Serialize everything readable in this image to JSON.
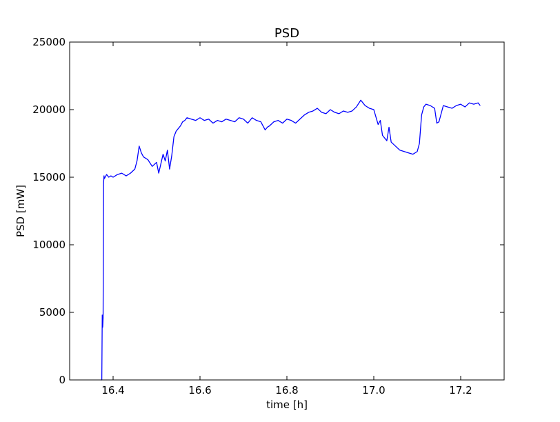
{
  "chart_data": {
    "type": "line",
    "title": "PSD",
    "xlabel": "time [h]",
    "ylabel": "PSD [mW]",
    "xlim": [
      16.3,
      17.3
    ],
    "ylim": [
      0,
      25000
    ],
    "grid": false,
    "xticks": [
      16.4,
      16.6,
      16.8,
      17.0,
      17.2
    ],
    "xtick_labels": [
      "16.4",
      "16.6",
      "16.8",
      "17.0",
      "17.2"
    ],
    "yticks": [
      0,
      5000,
      10000,
      15000,
      20000,
      25000
    ],
    "ytick_labels": [
      "0",
      "5000",
      "10000",
      "15000",
      "20000",
      "25000"
    ],
    "line_color": "#0000ff",
    "series": [
      {
        "x": [
          16.372,
          16.374,
          16.375,
          16.376,
          16.377,
          16.378,
          16.379,
          16.38,
          16.385,
          16.39,
          16.395,
          16.4,
          16.41,
          16.42,
          16.43,
          16.44,
          16.45,
          16.455,
          16.46,
          16.465,
          16.47,
          16.48,
          16.49,
          16.5,
          16.505,
          16.51,
          16.515,
          16.52,
          16.525,
          16.53,
          16.535,
          16.54,
          16.545,
          16.55,
          16.555,
          16.56,
          16.565,
          16.57,
          16.58,
          16.59,
          16.6,
          16.61,
          16.62,
          16.63,
          16.64,
          16.65,
          16.66,
          16.67,
          16.68,
          16.69,
          16.7,
          16.71,
          16.72,
          16.73,
          16.74,
          16.75,
          16.755,
          16.76,
          16.77,
          16.78,
          16.79,
          16.8,
          16.81,
          16.82,
          16.83,
          16.84,
          16.85,
          16.86,
          16.87,
          16.88,
          16.89,
          16.9,
          16.91,
          16.92,
          16.93,
          16.94,
          16.95,
          16.96,
          16.97,
          16.975,
          16.98,
          16.99,
          17.0,
          17.01,
          17.015,
          17.02,
          17.025,
          17.03,
          17.035,
          17.04,
          17.05,
          17.06,
          17.07,
          17.08,
          17.09,
          17.1,
          17.105,
          17.11,
          17.115,
          17.12,
          17.13,
          17.14,
          17.145,
          17.15,
          17.16,
          17.17,
          17.18,
          17.19,
          17.2,
          17.21,
          17.22,
          17.23,
          17.24,
          17.245
        ],
        "y": [
          0,
          0,
          4800,
          3900,
          4600,
          14500,
          15100,
          14900,
          15200,
          15000,
          15100,
          15000,
          15200,
          15300,
          15100,
          15300,
          15600,
          16200,
          17300,
          16800,
          16500,
          16300,
          15800,
          16100,
          15300,
          16000,
          16700,
          16200,
          17000,
          15600,
          16600,
          18000,
          18400,
          18600,
          18800,
          19100,
          19200,
          19400,
          19300,
          19200,
          19400,
          19200,
          19300,
          19000,
          19200,
          19100,
          19300,
          19200,
          19100,
          19400,
          19300,
          19000,
          19400,
          19200,
          19100,
          18500,
          18700,
          18800,
          19100,
          19200,
          19000,
          19300,
          19200,
          19000,
          19300,
          19600,
          19800,
          19900,
          20100,
          19800,
          19700,
          20000,
          19800,
          19700,
          19900,
          19800,
          19900,
          20200,
          20700,
          20500,
          20300,
          20100,
          20000,
          18900,
          19200,
          18100,
          17900,
          17700,
          18700,
          17600,
          17300,
          17000,
          16900,
          16800,
          16700,
          16900,
          17500,
          19600,
          20200,
          20400,
          20300,
          20100,
          19000,
          19100,
          20300,
          20200,
          20100,
          20300,
          20400,
          20200,
          20500,
          20400,
          20500,
          20300
        ]
      }
    ]
  }
}
